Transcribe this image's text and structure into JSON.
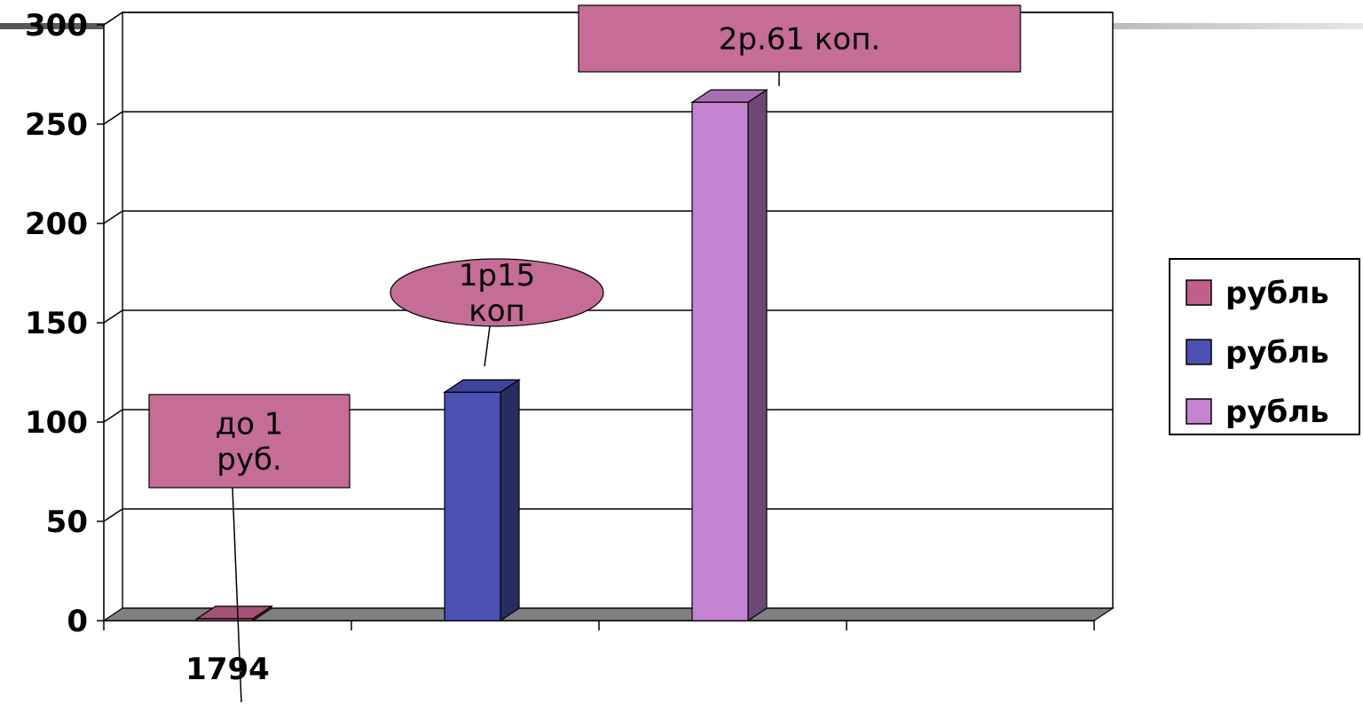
{
  "chart_data": {
    "type": "bar",
    "title": "",
    "xlabel": "",
    "ylabel": "",
    "ylim": [
      0,
      300
    ],
    "yticks": [
      0,
      50,
      100,
      150,
      200,
      250,
      300
    ],
    "categories": [
      "1794",
      "",
      "",
      ""
    ],
    "grid": true,
    "three_d": true,
    "legend_position": "right",
    "series": [
      {
        "name": "рубль",
        "color": "#C0608A",
        "values": [
          1,
          null,
          null,
          null
        ],
        "category_index": 0
      },
      {
        "name": "рубль",
        "color": "#4B50B4",
        "values": [
          115,
          null,
          null,
          null
        ],
        "category_index": 1
      },
      {
        "name": "рубль",
        "color": "#C584D2",
        "values": [
          261,
          null,
          null,
          null
        ],
        "category_index": 2
      }
    ],
    "annotations": [
      {
        "text_lines": [
          "до 1",
          "руб."
        ],
        "shape": "box",
        "series_index": 0
      },
      {
        "text_lines": [
          "1р15",
          "коп"
        ],
        "shape": "ellipse",
        "series_index": 1
      },
      {
        "text_lines": [
          "2р.61 коп."
        ],
        "shape": "box",
        "series_index": 2
      }
    ]
  }
}
